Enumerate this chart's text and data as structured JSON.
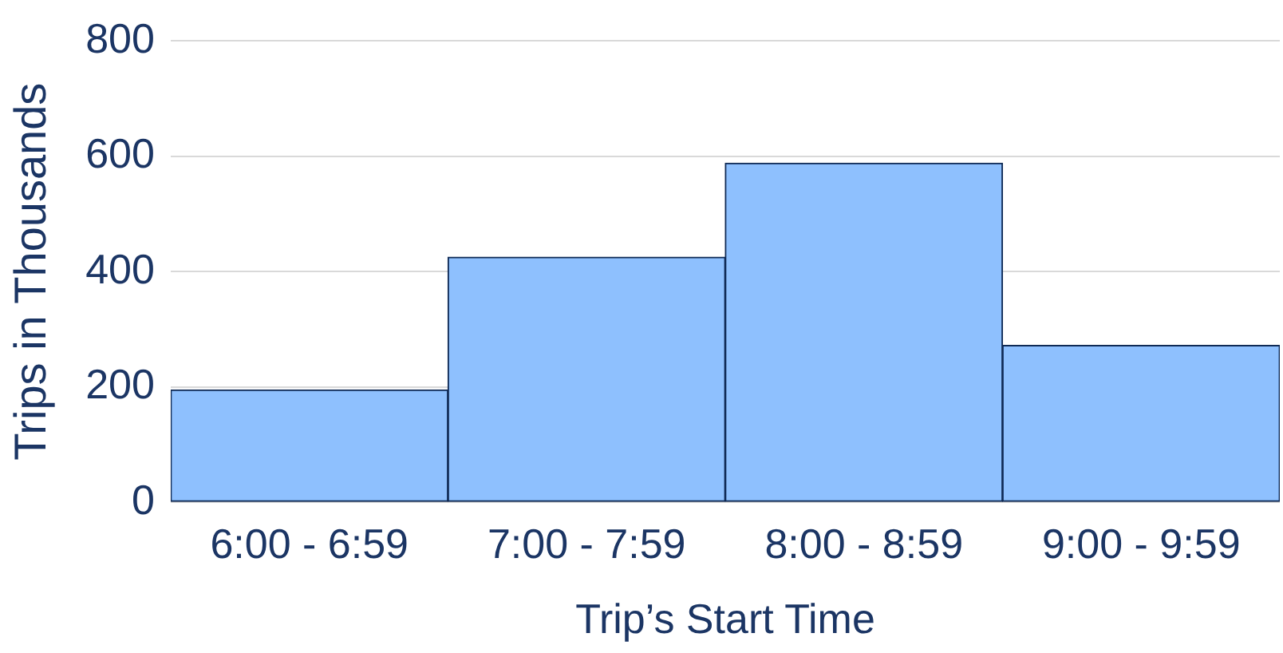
{
  "chart_data": {
    "type": "bar",
    "xlabel": "Trip’s Start Time",
    "ylabel": "Trips in Thousands",
    "categories": [
      "6:00 - 6:59",
      "7:00 - 7:59",
      "8:00 - 8:59",
      "9:00 - 9:59"
    ],
    "values": [
      195,
      425,
      588,
      272
    ],
    "color": "#8ec0fe",
    "ylim": [
      0,
      800
    ],
    "yticks": [
      0,
      200,
      400,
      600,
      800
    ],
    "grid": "y",
    "legend": false
  }
}
